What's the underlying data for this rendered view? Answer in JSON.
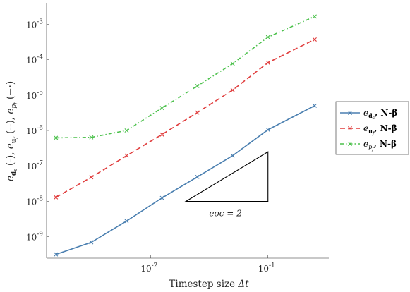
{
  "chart_data": {
    "type": "line",
    "xscale": "log",
    "yscale": "log",
    "xlim": [
      0.0013,
      0.33
    ],
    "ylim": [
      2.5e-10,
      0.004
    ],
    "xlabel": "Timestep size Δt",
    "ylabel": "e_ds (-), e_uf (--), e_pf (-·)",
    "x_ticks": [
      {
        "value": 0.01,
        "base": "10",
        "exp": "-2"
      },
      {
        "value": 0.1,
        "base": "10",
        "exp": "-1"
      }
    ],
    "y_ticks": [
      {
        "value": 1e-09,
        "base": "10",
        "exp": "-9"
      },
      {
        "value": 1e-08,
        "base": "10",
        "exp": "-8"
      },
      {
        "value": 1e-07,
        "base": "10",
        "exp": "-7"
      },
      {
        "value": 1e-06,
        "base": "10",
        "exp": "-6"
      },
      {
        "value": 1e-05,
        "base": "10",
        "exp": "-5"
      },
      {
        "value": 0.0001,
        "base": "10",
        "exp": "-4"
      },
      {
        "value": 0.001,
        "base": "10",
        "exp": "-3"
      }
    ],
    "x": [
      0.0015625,
      0.003125,
      0.00625,
      0.0125,
      0.025,
      0.05,
      0.1,
      0.25
    ],
    "series": [
      {
        "name": "e_ds, N-β",
        "color": "#4a7fb0",
        "dash": "",
        "values": [
          3.2e-10,
          7e-10,
          2.8e-09,
          1.25e-08,
          4.9e-08,
          1.95e-07,
          1.05e-06,
          5e-06
        ]
      },
      {
        "name": "e_uf, N-β",
        "color": "#e03c3c",
        "dash": "7,4",
        "values": [
          1.3e-08,
          4.8e-08,
          1.95e-07,
          7.7e-07,
          3.2e-06,
          1.38e-05,
          8.2e-05,
          0.00037
        ]
      },
      {
        "name": "e_pf, N-β",
        "color": "#4cc14c",
        "dash": "5,3,1.5,3",
        "values": [
          6.2e-07,
          6.4e-07,
          1e-06,
          4.3e-06,
          1.8e-05,
          7.7e-05,
          0.00043,
          0.00165
        ]
      }
    ],
    "triangle": {
      "x": [
        0.02,
        0.1
      ],
      "y_bottom": 1e-08,
      "label": "eoc = 2"
    },
    "legend": {
      "placement": "outside-right",
      "entries": [
        {
          "base": "e",
          "sub": "d",
          "subsub": "s",
          "suffix": ", N-β"
        },
        {
          "base": "e",
          "sub": "u",
          "subsub": "f",
          "suffix": ", N-β"
        },
        {
          "base": "e",
          "sub": "p",
          "subsub": "f",
          "suffix": ", N-β"
        }
      ]
    }
  }
}
